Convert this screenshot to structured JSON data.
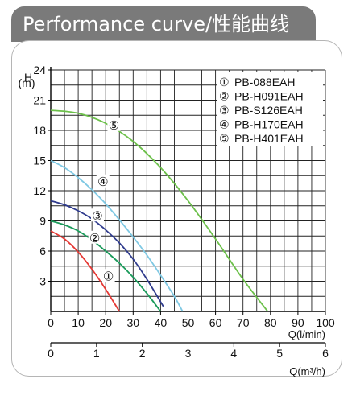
{
  "header": {
    "title": "Performance curve/性能曲线"
  },
  "chart_data": {
    "type": "line",
    "ylabel": "H",
    "yunit": "(m)",
    "ylim": [
      0,
      24
    ],
    "yticks": [
      0,
      3,
      6,
      9,
      12,
      15,
      18,
      21,
      24
    ],
    "xlabel": "Q(l/min)",
    "xlim": [
      0,
      100
    ],
    "xticks": [
      0,
      10,
      20,
      30,
      40,
      50,
      60,
      70,
      80,
      90,
      100
    ],
    "x2label": "Q(m³/h)",
    "x2lim": [
      0,
      6
    ],
    "x2ticks": [
      0,
      1,
      2,
      3,
      4,
      5,
      6
    ],
    "grid": true,
    "legend_position": "top-right",
    "series": [
      {
        "name": "PB-088EAH",
        "marker": "①",
        "color": "#e53935",
        "x": [
          0,
          5,
          10,
          15,
          20,
          25
        ],
        "y": [
          8,
          7.2,
          5.9,
          4.2,
          2.2,
          0
        ]
      },
      {
        "name": "PB-H091EAH",
        "marker": "②",
        "color": "#1a9a5a",
        "x": [
          0,
          5,
          10,
          15,
          20,
          25,
          30,
          35,
          40
        ],
        "y": [
          9,
          8.6,
          8.0,
          7.1,
          6.0,
          4.8,
          3.4,
          1.8,
          0
        ]
      },
      {
        "name": "PB-S126EAH",
        "marker": "③",
        "color": "#2e3a8c",
        "x": [
          0,
          5,
          10,
          15,
          20,
          25,
          30,
          35,
          41
        ],
        "y": [
          11,
          10.6,
          10.0,
          9.2,
          8.1,
          6.8,
          5.2,
          3.2,
          0.5
        ]
      },
      {
        "name": "PB-H170EAH",
        "marker": "④",
        "color": "#7ec8e3",
        "x": [
          0,
          5,
          10,
          15,
          20,
          25,
          30,
          35,
          40,
          45,
          48
        ],
        "y": [
          15,
          14.3,
          13.3,
          12.1,
          10.7,
          9.1,
          7.4,
          5.6,
          3.6,
          1.5,
          0
        ]
      },
      {
        "name": "PB-H401EAH",
        "marker": "⑤",
        "color": "#6cc04a",
        "x": [
          0,
          10,
          20,
          30,
          40,
          50,
          60,
          70,
          79
        ],
        "y": [
          20,
          19.7,
          18.7,
          16.9,
          14.3,
          11.0,
          7.2,
          3.2,
          0
        ]
      }
    ],
    "series_marker_positions": [
      {
        "x": 21,
        "y": 3.5
      },
      {
        "x": 16,
        "y": 7.3
      },
      {
        "x": 17,
        "y": 9.5
      },
      {
        "x": 19,
        "y": 12.9
      },
      {
        "x": 23,
        "y": 18.5
      }
    ]
  }
}
